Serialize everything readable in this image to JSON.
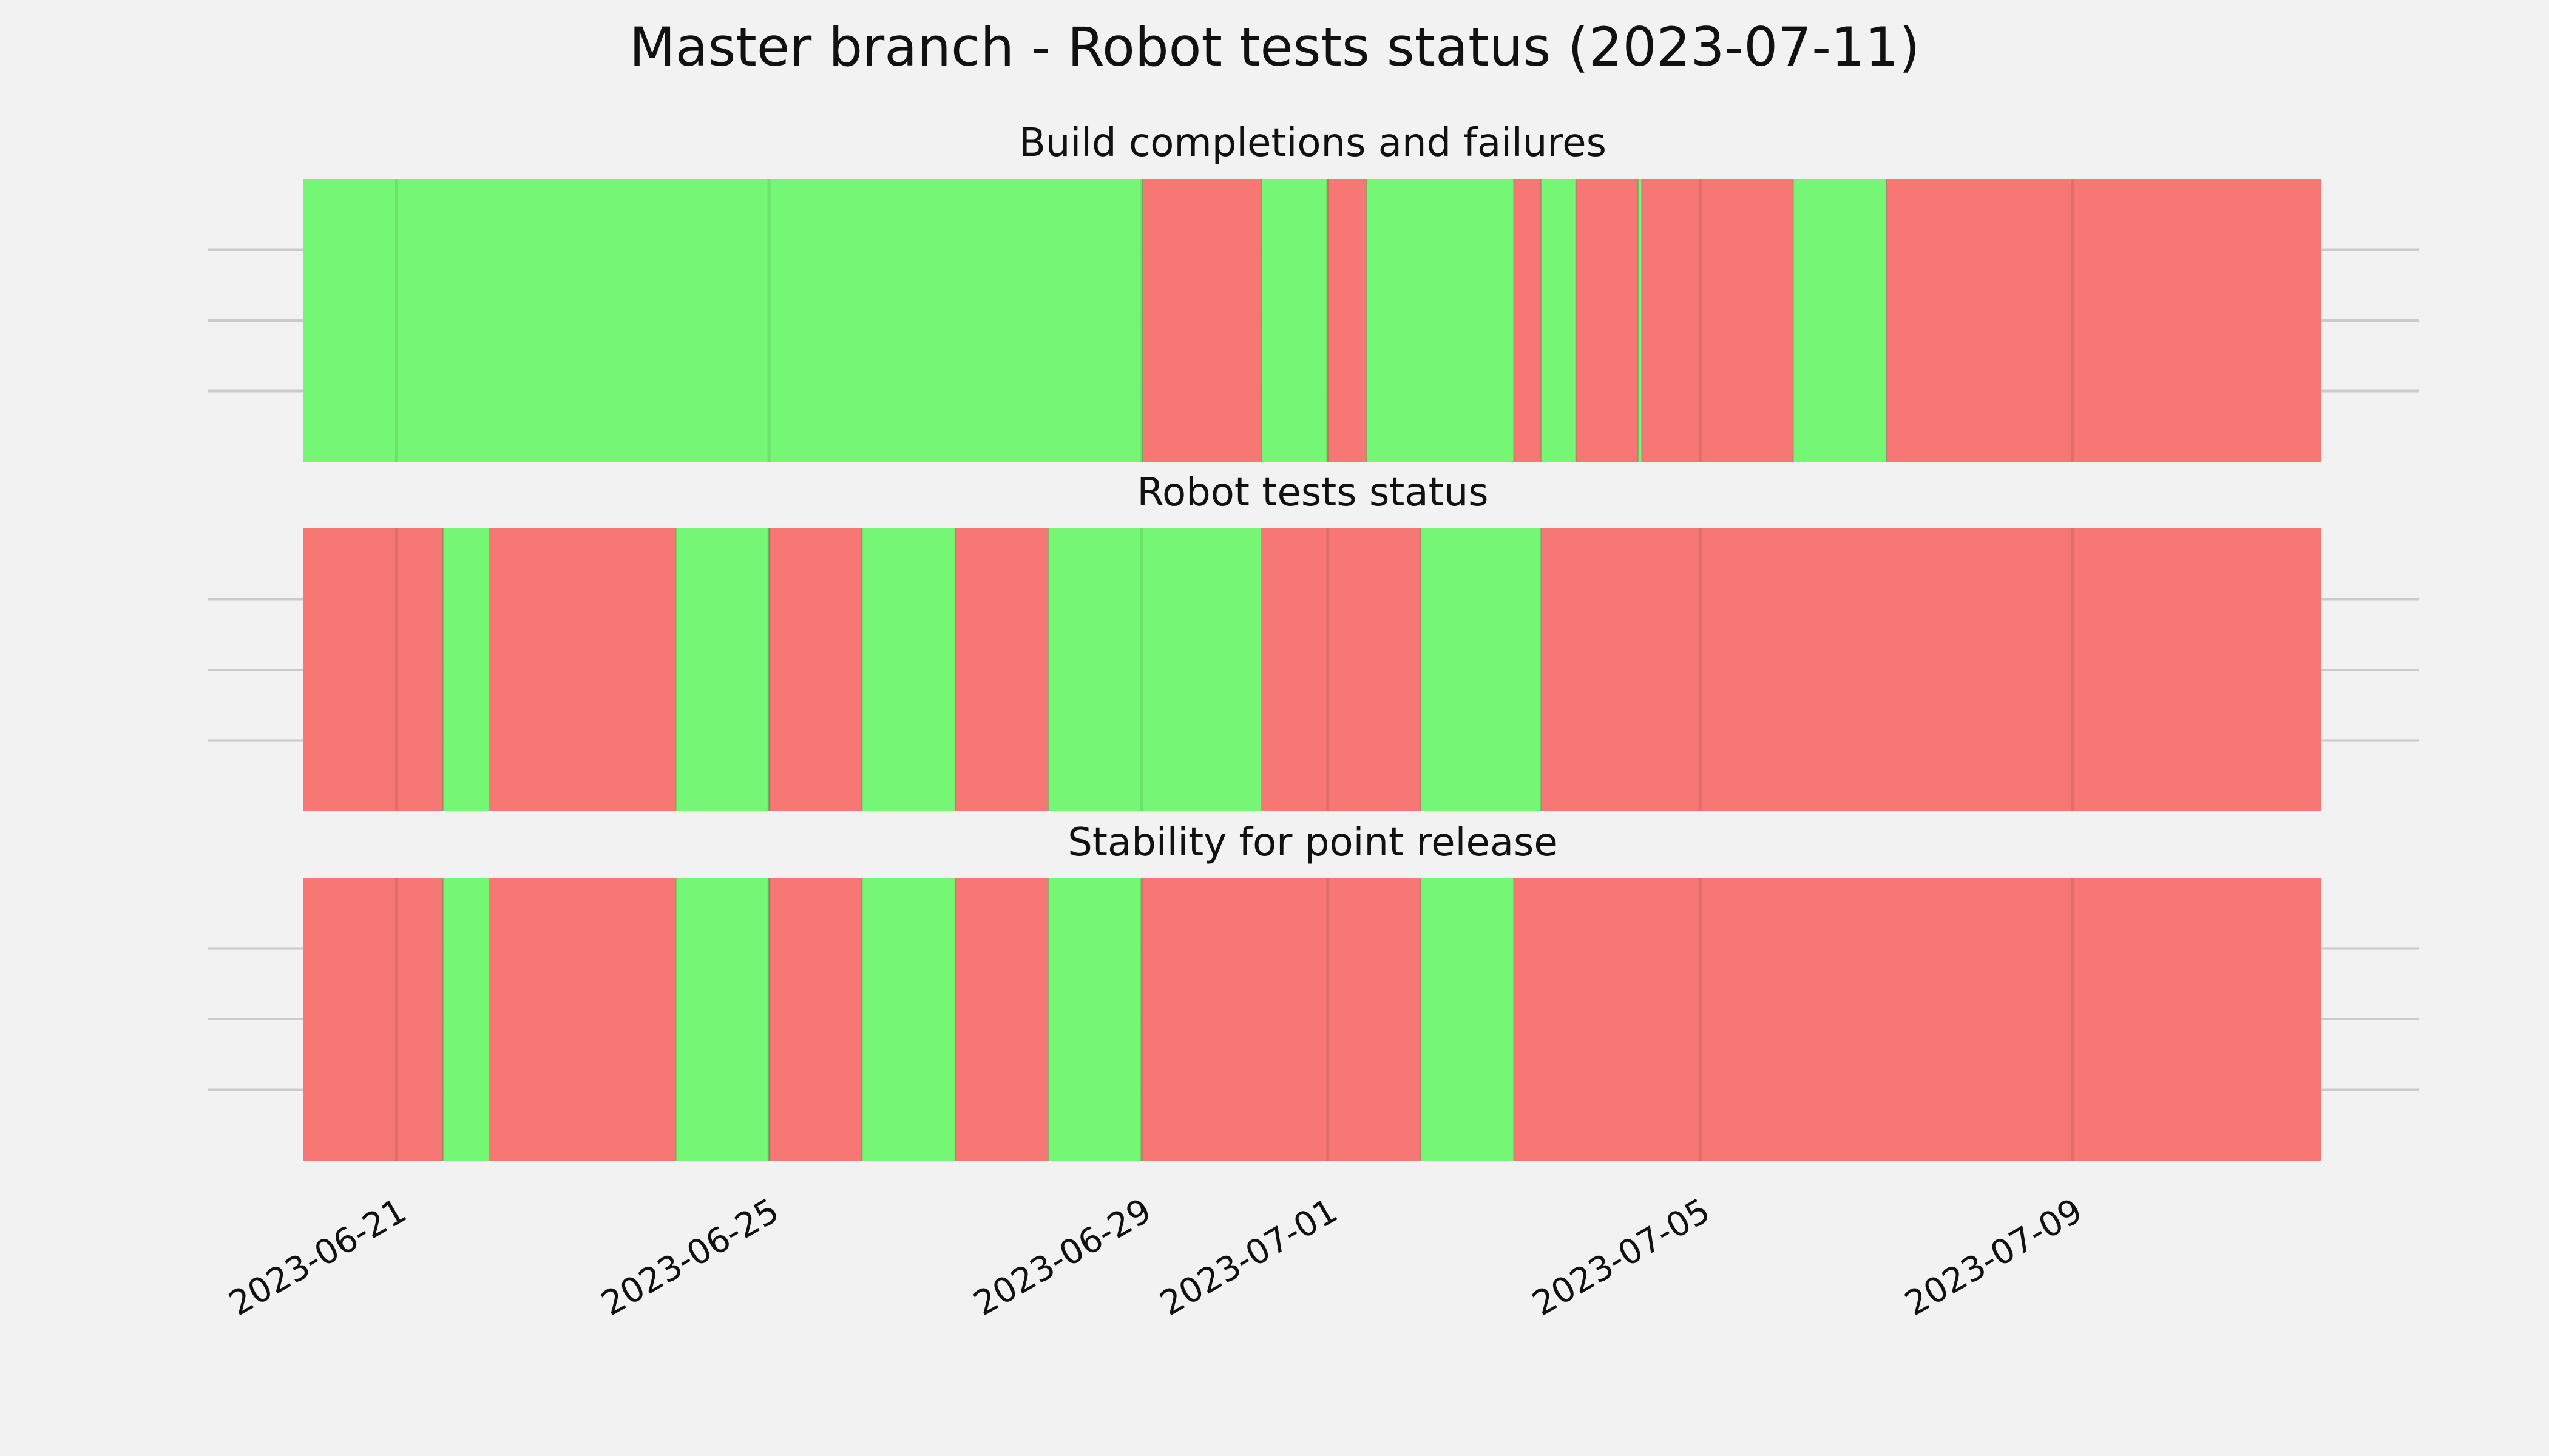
{
  "title": "Master branch - Robot tests status (2023-07-11)",
  "colors": {
    "pass": "#75f775",
    "fail": "#f77775",
    "background": "#f2f2f2",
    "grid": "#cbcbcb"
  },
  "chart_data": {
    "type": "timeline",
    "x_range": [
      "2023-06-20T00:00",
      "2023-07-11T16:00"
    ],
    "x_ticks": [
      "2023-06-21",
      "2023-06-25",
      "2023-06-29",
      "2023-07-01",
      "2023-07-05",
      "2023-07-09"
    ],
    "grid": true,
    "panels": [
      {
        "title": "Build completions and failures",
        "segments": [
          {
            "start": "2023-06-20T00:00",
            "end": "2023-06-29T00:20",
            "status": "pass"
          },
          {
            "start": "2023-06-29T00:20",
            "end": "2023-06-30T07:00",
            "status": "fail"
          },
          {
            "start": "2023-06-30T07:00",
            "end": "2023-07-01T00:00",
            "status": "pass"
          },
          {
            "start": "2023-07-01T00:00",
            "end": "2023-07-01T10:00",
            "status": "fail"
          },
          {
            "start": "2023-07-01T10:00",
            "end": "2023-07-03T00:00",
            "status": "pass"
          },
          {
            "start": "2023-07-03T00:00",
            "end": "2023-07-03T07:00",
            "status": "fail"
          },
          {
            "start": "2023-07-03T07:00",
            "end": "2023-07-03T16:00",
            "status": "pass"
          },
          {
            "start": "2023-07-03T16:00",
            "end": "2023-07-04T08:00",
            "status": "fail"
          },
          {
            "start": "2023-07-04T08:00",
            "end": "2023-07-04T09:00",
            "status": "pass"
          },
          {
            "start": "2023-07-04T09:00",
            "end": "2023-07-06T00:00",
            "status": "fail"
          },
          {
            "start": "2023-07-06T00:00",
            "end": "2023-07-07T00:00",
            "status": "pass"
          },
          {
            "start": "2023-07-07T00:00",
            "end": "2023-07-11T16:00",
            "status": "fail"
          }
        ]
      },
      {
        "title": "Robot tests status",
        "segments": [
          {
            "start": "2023-06-20T00:00",
            "end": "2023-06-21T12:00",
            "status": "fail"
          },
          {
            "start": "2023-06-21T12:00",
            "end": "2023-06-22T00:00",
            "status": "pass"
          },
          {
            "start": "2023-06-22T00:00",
            "end": "2023-06-24T00:00",
            "status": "fail"
          },
          {
            "start": "2023-06-24T00:00",
            "end": "2023-06-25T00:00",
            "status": "pass"
          },
          {
            "start": "2023-06-25T00:00",
            "end": "2023-06-26T00:00",
            "status": "fail"
          },
          {
            "start": "2023-06-26T00:00",
            "end": "2023-06-27T00:00",
            "status": "pass"
          },
          {
            "start": "2023-06-27T00:00",
            "end": "2023-06-28T00:00",
            "status": "fail"
          },
          {
            "start": "2023-06-28T00:00",
            "end": "2023-06-30T07:00",
            "status": "pass"
          },
          {
            "start": "2023-06-30T07:00",
            "end": "2023-07-02T00:00",
            "status": "fail"
          },
          {
            "start": "2023-07-02T00:00",
            "end": "2023-07-03T07:00",
            "status": "pass"
          },
          {
            "start": "2023-07-03T07:00",
            "end": "2023-07-11T16:00",
            "status": "fail"
          }
        ]
      },
      {
        "title": "Stability for point release",
        "segments": [
          {
            "start": "2023-06-20T00:00",
            "end": "2023-06-21T12:00",
            "status": "fail"
          },
          {
            "start": "2023-06-21T12:00",
            "end": "2023-06-22T00:00",
            "status": "pass"
          },
          {
            "start": "2023-06-22T00:00",
            "end": "2023-06-24T00:00",
            "status": "fail"
          },
          {
            "start": "2023-06-24T00:00",
            "end": "2023-06-25T00:00",
            "status": "pass"
          },
          {
            "start": "2023-06-25T00:00",
            "end": "2023-06-26T00:00",
            "status": "fail"
          },
          {
            "start": "2023-06-26T00:00",
            "end": "2023-06-27T00:00",
            "status": "pass"
          },
          {
            "start": "2023-06-27T00:00",
            "end": "2023-06-28T00:00",
            "status": "fail"
          },
          {
            "start": "2023-06-28T00:00",
            "end": "2023-06-29T00:00",
            "status": "pass"
          },
          {
            "start": "2023-06-29T00:00",
            "end": "2023-07-02T00:00",
            "status": "fail"
          },
          {
            "start": "2023-07-02T00:00",
            "end": "2023-07-03T00:00",
            "status": "pass"
          },
          {
            "start": "2023-07-03T00:00",
            "end": "2023-07-11T16:00",
            "status": "fail"
          }
        ]
      }
    ]
  }
}
